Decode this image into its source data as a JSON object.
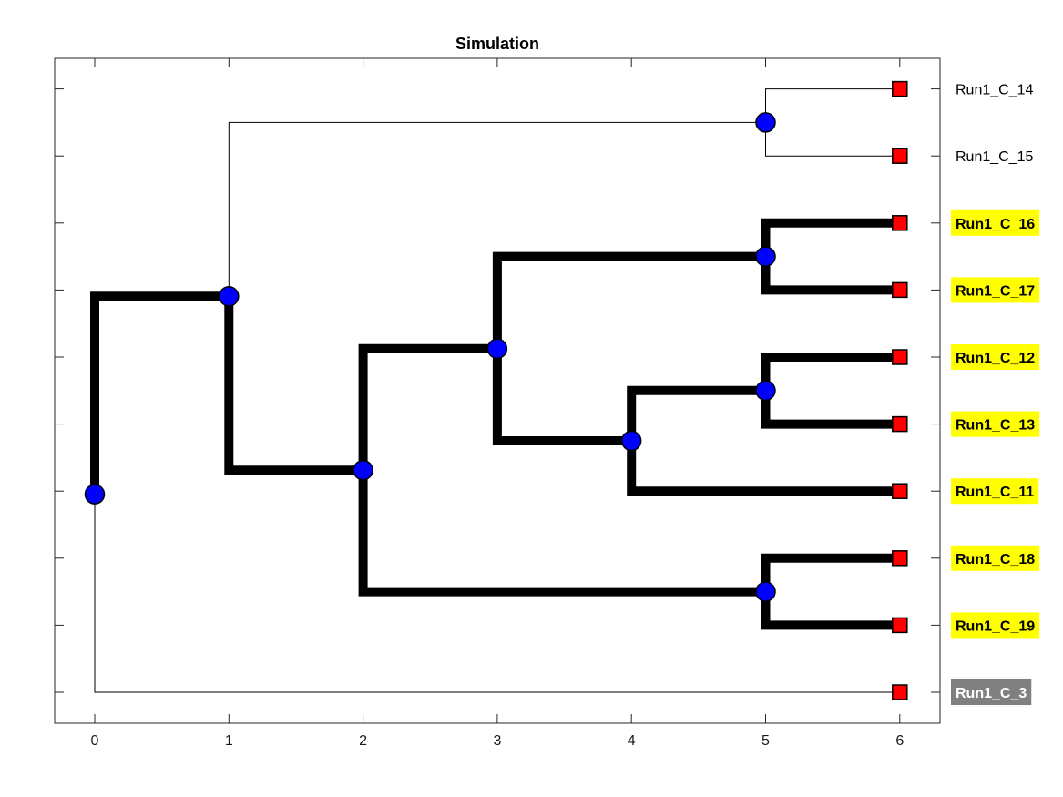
{
  "chart_data": {
    "type": "tree",
    "title": "Simulation",
    "x_ticks": [
      "0",
      "1",
      "2",
      "3",
      "4",
      "5",
      "6"
    ],
    "xlim": [
      -0.3,
      6.3
    ],
    "colors": {
      "node": "#0000ff",
      "leaf": "#ff0000",
      "highlight_bg": "#ffff00",
      "gray_bg": "#808080",
      "branch": "#000000"
    },
    "leaves": [
      {
        "id": "L14",
        "label": "Run1_C_14",
        "x": 6,
        "style": "plain"
      },
      {
        "id": "L15",
        "label": "Run1_C_15",
        "x": 6,
        "style": "plain"
      },
      {
        "id": "L16",
        "label": "Run1_C_16",
        "x": 6,
        "style": "highlight"
      },
      {
        "id": "L17",
        "label": "Run1_C_17",
        "x": 6,
        "style": "highlight"
      },
      {
        "id": "L12",
        "label": "Run1_C_12",
        "x": 6,
        "style": "highlight"
      },
      {
        "id": "L13",
        "label": "Run1_C_13",
        "x": 6,
        "style": "highlight"
      },
      {
        "id": "L11",
        "label": "Run1_C_11",
        "x": 6,
        "style": "highlight"
      },
      {
        "id": "L18",
        "label": "Run1_C_18",
        "x": 6,
        "style": "highlight"
      },
      {
        "id": "L19",
        "label": "Run1_C_19",
        "x": 6,
        "style": "highlight"
      },
      {
        "id": "L3",
        "label": "Run1_C_3",
        "x": 6,
        "style": "gray"
      }
    ],
    "internal_nodes": [
      {
        "id": "N0",
        "x": 0,
        "children": [
          "N1",
          "L3"
        ]
      },
      {
        "id": "N1",
        "x": 1,
        "children": [
          "N5a",
          "N2"
        ]
      },
      {
        "id": "N5a",
        "x": 5,
        "children": [
          "L14",
          "L15"
        ]
      },
      {
        "id": "N2",
        "x": 2,
        "children": [
          "N3",
          "N5d"
        ]
      },
      {
        "id": "N3",
        "x": 3,
        "children": [
          "N5b",
          "N4"
        ]
      },
      {
        "id": "N5b",
        "x": 5,
        "children": [
          "L16",
          "L17"
        ]
      },
      {
        "id": "N4",
        "x": 4,
        "children": [
          "N5c",
          "L11"
        ]
      },
      {
        "id": "N5c",
        "x": 5,
        "children": [
          "L12",
          "L13"
        ]
      },
      {
        "id": "N5d",
        "x": 5,
        "children": [
          "L18",
          "L19"
        ]
      }
    ],
    "thick_edges": [
      [
        "N0",
        "N1"
      ],
      [
        "N1",
        "N2"
      ],
      [
        "N2",
        "N3"
      ],
      [
        "N2",
        "N5d"
      ],
      [
        "N3",
        "N5b"
      ],
      [
        "N3",
        "N4"
      ],
      [
        "N5b",
        "L16"
      ],
      [
        "N5b",
        "L17"
      ],
      [
        "N4",
        "N5c"
      ],
      [
        "N4",
        "L11"
      ],
      [
        "N5c",
        "L12"
      ],
      [
        "N5c",
        "L13"
      ],
      [
        "N5d",
        "L18"
      ],
      [
        "N5d",
        "L19"
      ]
    ]
  }
}
